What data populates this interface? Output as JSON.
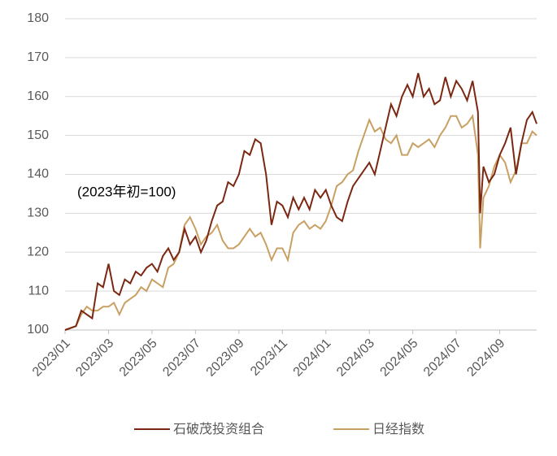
{
  "chart_data": {
    "type": "line",
    "annotation": "(2023年初=100)",
    "x": [
      0,
      0.5,
      0.75,
      1,
      1.25,
      1.5,
      1.75,
      2,
      2.25,
      2.5,
      2.75,
      3,
      3.25,
      3.5,
      3.75,
      4,
      4.25,
      4.5,
      4.75,
      5,
      5.25,
      5.5,
      5.75,
      6,
      6.25,
      6.5,
      6.75,
      7,
      7.25,
      7.5,
      7.75,
      8,
      8.25,
      8.5,
      8.75,
      9,
      9.25,
      9.5,
      9.75,
      10,
      10.25,
      10.5,
      10.75,
      11,
      11.25,
      11.5,
      11.75,
      12,
      12.25,
      12.5,
      12.75,
      13,
      13.25,
      13.5,
      13.75,
      14,
      14.25,
      14.5,
      14.75,
      15,
      15.25,
      15.5,
      15.75,
      16,
      16.25,
      16.5,
      16.75,
      17,
      17.25,
      17.5,
      17.75,
      18,
      18.25,
      18.5,
      18.75,
      19,
      19.1,
      19.25,
      19.5,
      19.75,
      20,
      20.25,
      20.5,
      20.75,
      21,
      21.25,
      21.5,
      21.7
    ],
    "series": [
      {
        "name": "石破茂投资组合",
        "color": "#7b2812",
        "values": [
          100,
          101,
          105,
          104,
          103,
          112,
          111,
          117,
          110,
          109,
          113,
          112,
          115,
          114,
          116,
          117,
          115,
          119,
          121,
          118,
          120,
          126,
          122,
          124,
          120,
          123,
          128,
          132,
          133,
          138,
          137,
          140,
          146,
          145,
          149,
          148,
          140,
          127,
          133,
          132,
          129,
          134,
          131,
          134,
          131,
          136,
          134,
          136,
          132,
          129,
          128,
          133,
          137,
          139,
          141,
          143,
          140,
          146,
          152,
          158,
          155,
          160,
          163,
          160,
          166,
          160,
          162,
          158,
          159,
          165,
          160,
          164,
          162,
          159,
          164,
          156,
          130,
          142,
          138,
          140,
          145,
          148,
          152,
          140,
          148,
          154,
          156,
          153
        ]
      },
      {
        "name": "日经指数",
        "color": "#c9a063",
        "values": [
          100,
          101,
          104,
          106,
          105,
          105,
          106,
          106,
          107,
          104,
          107,
          108,
          109,
          111,
          110,
          113,
          112,
          111,
          116,
          117,
          120,
          127,
          129,
          126,
          122,
          124,
          125,
          127,
          123,
          121,
          121,
          122,
          124,
          126,
          124,
          125,
          122,
          118,
          121,
          121,
          118,
          125,
          127,
          128,
          126,
          127,
          126,
          128,
          132,
          137,
          138,
          140,
          141,
          146,
          150,
          154,
          151,
          152,
          149,
          148,
          150,
          145,
          145,
          148,
          147,
          148,
          149,
          147,
          150,
          152,
          155,
          155,
          152,
          153,
          155,
          145,
          121,
          134,
          137,
          142,
          145,
          143,
          138,
          141,
          148,
          148,
          151,
          150
        ]
      }
    ],
    "xlim": [
      0,
      21.7
    ],
    "xticks": [
      {
        "value": 0,
        "label": "2023/01"
      },
      {
        "value": 2,
        "label": "2023/03"
      },
      {
        "value": 4,
        "label": "2023/05"
      },
      {
        "value": 6,
        "label": "2023/07"
      },
      {
        "value": 8,
        "label": "2023/09"
      },
      {
        "value": 10,
        "label": "2023/11"
      },
      {
        "value": 12,
        "label": "2024/01"
      },
      {
        "value": 14,
        "label": "2024/03"
      },
      {
        "value": 16,
        "label": "2024/05"
      },
      {
        "value": 18,
        "label": "2024/07"
      },
      {
        "value": 20,
        "label": "2024/09"
      }
    ],
    "ylim": [
      100,
      180
    ],
    "yticks": [
      100,
      110,
      120,
      130,
      140,
      150,
      160,
      170,
      180
    ],
    "grid": true
  }
}
